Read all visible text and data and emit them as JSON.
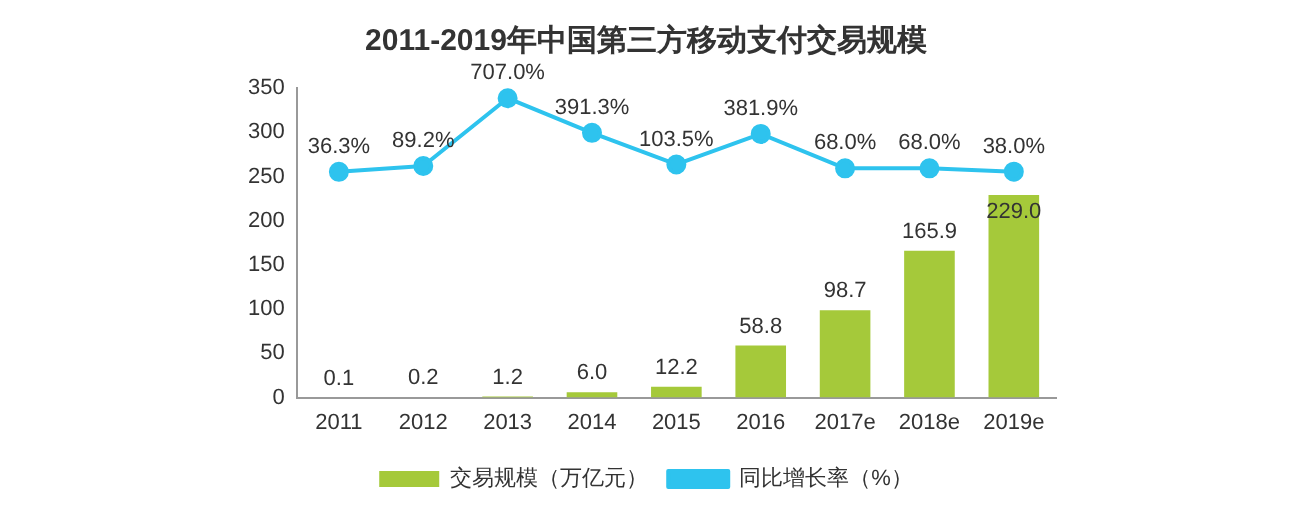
{
  "chart_data": {
    "type": "bar",
    "title": "2011-2019年中国第三方移动支付交易规模",
    "categories": [
      "2011",
      "2012",
      "2013",
      "2014",
      "2015",
      "2016",
      "2017e",
      "2018e",
      "2019e"
    ],
    "series": [
      {
        "name": "交易规模（万亿元）",
        "type": "bar",
        "color": "#a5c93a",
        "values": [
          0.1,
          0.2,
          1.2,
          6.0,
          12.2,
          58.8,
          98.7,
          165.9,
          229.0
        ],
        "value_labels": [
          "0.1",
          "0.2",
          "1.2",
          "6.0",
          "12.2",
          "58.8",
          "98.7",
          "165.9",
          "229.0"
        ]
      },
      {
        "name": "同比增长率（%）",
        "type": "line",
        "axis": "y2",
        "color": "#2ec3ee",
        "marker": "circle",
        "values": [
          36.3,
          89.2,
          707.0,
          391.3,
          103.5,
          381.9,
          68.0,
          68.0,
          38.0
        ],
        "value_labels": [
          "36.3%",
          "89.2%",
          "707.0%",
          "391.3%",
          "103.5%",
          "381.9%",
          "68.0%",
          "68.0%",
          "38.0%"
        ]
      }
    ],
    "ylim": [
      0,
      350
    ],
    "yticks": [
      0,
      50,
      100,
      150,
      200,
      250,
      300,
      350
    ],
    "y2lim": [
      -2020,
      800
    ],
    "tick_labels": "xy",
    "grid": false,
    "legend": "bottom"
  }
}
